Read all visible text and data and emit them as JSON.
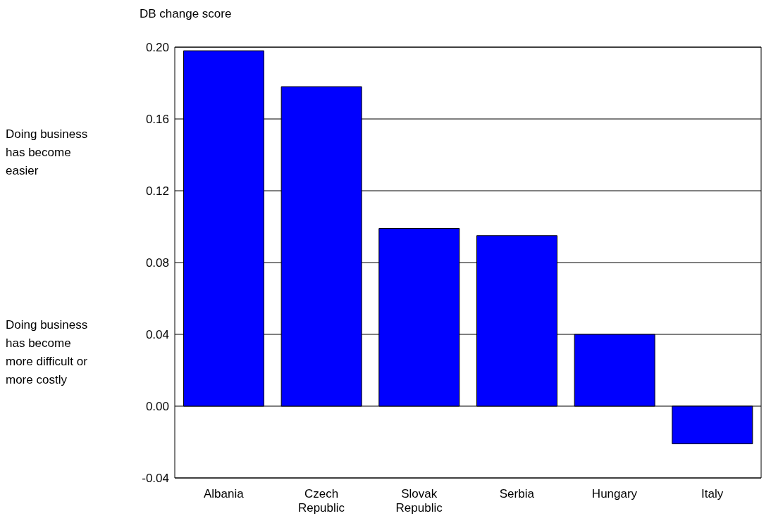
{
  "chart_data": {
    "type": "bar",
    "ylabel": "DB change score",
    "categories": [
      "Albania",
      "Czech Republic",
      "Slovak Republic",
      "Serbia",
      "Hungary",
      "Italy"
    ],
    "values": [
      0.198,
      0.178,
      0.099,
      0.095,
      0.04,
      -0.021
    ],
    "color": "#0000ff",
    "ylim": [
      -0.04,
      0.2
    ],
    "yticks": [
      {
        "value": -0.04,
        "label": "-0.04"
      },
      {
        "value": 0,
        "label": "0.00"
      },
      {
        "value": 0.04,
        "label": "0.04"
      },
      {
        "value": 0.08,
        "label": "0.08"
      },
      {
        "value": 0.12,
        "label": "0.12"
      },
      {
        "value": 0.16,
        "label": "0.16"
      },
      {
        "value": 0.2,
        "label": "0.20"
      }
    ],
    "grid": "y",
    "annotations": [
      "Doing business has become easier",
      "Doing business has become more difficult or more costly"
    ]
  }
}
